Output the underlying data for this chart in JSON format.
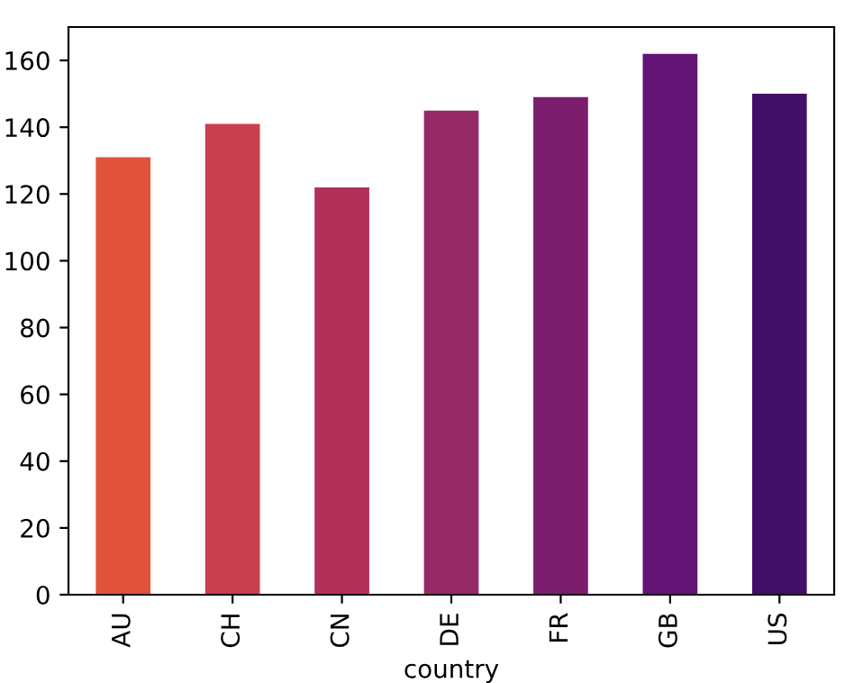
{
  "chart_data": {
    "type": "bar",
    "xlabel": "country",
    "categories": [
      "AU",
      "CH",
      "CN",
      "DE",
      "FR",
      "GB",
      "US"
    ],
    "values": [
      131,
      141,
      122,
      145,
      149,
      162,
      150
    ],
    "colors": [
      "#e0533a",
      "#c93f4d",
      "#b0305a",
      "#962a66",
      "#7c1e6e",
      "#631474",
      "#420f68"
    ],
    "ylim": [
      0,
      170
    ],
    "yticks": [
      0,
      20,
      40,
      60,
      80,
      100,
      120,
      140,
      160
    ]
  }
}
